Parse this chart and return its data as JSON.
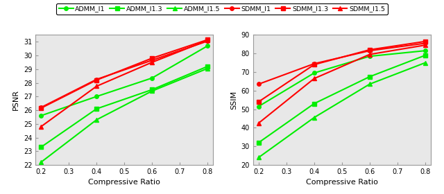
{
  "x": [
    0.2,
    0.4,
    0.6,
    0.8
  ],
  "psnr": {
    "ADMM_l1": [
      25.6,
      27.0,
      28.35,
      30.7
    ],
    "ADMM_l1_3": [
      23.3,
      26.1,
      27.5,
      29.2
    ],
    "ADMM_l1_5": [
      22.2,
      25.3,
      27.4,
      29.05
    ],
    "SDMM_l1": [
      26.2,
      28.25,
      29.65,
      31.05
    ],
    "SDMM_l1_3": [
      26.15,
      28.2,
      29.8,
      31.15
    ],
    "SDMM_l1_5": [
      24.8,
      27.75,
      29.5,
      31.1
    ]
  },
  "ssim": {
    "ADMM_l1": [
      51.5,
      69.5,
      78.5,
      81.5
    ],
    "ADMM_l1_3": [
      32.0,
      53.0,
      67.5,
      79.0
    ],
    "ADMM_l1_5": [
      24.0,
      45.5,
      63.5,
      75.0
    ],
    "SDMM_l1": [
      63.5,
      74.5,
      81.5,
      85.5
    ],
    "SDMM_l1_3": [
      54.0,
      74.0,
      82.0,
      86.5
    ],
    "SDMM_l1_5": [
      42.5,
      66.5,
      79.5,
      84.5
    ]
  },
  "colors": {
    "ADMM": "#00EE00",
    "SDMM": "#FF0000"
  },
  "psnr_ylim": [
    22,
    31.5
  ],
  "ssim_ylim": [
    20,
    90
  ],
  "psnr_yticks": [
    22,
    23,
    24,
    25,
    26,
    27,
    28,
    29,
    30,
    31
  ],
  "ssim_yticks": [
    20,
    30,
    40,
    50,
    60,
    70,
    80,
    90
  ],
  "xticks": [
    0.2,
    0.3,
    0.4,
    0.5,
    0.6,
    0.7,
    0.8
  ],
  "xlabel": "Compressive Ratio",
  "ylabel_left": "PSNR",
  "ylabel_right": "SSIM",
  "linewidth": 1.5,
  "markersize": 4,
  "axes_facecolor": "#e8e8e8",
  "legend_entries": [
    {
      "label": "ADMM_I1",
      "color": "#00EE00",
      "marker": "o"
    },
    {
      "label": "ADMM_I1.3",
      "color": "#00EE00",
      "marker": "s"
    },
    {
      "label": "ADMM_I1.5",
      "color": "#00EE00",
      "marker": "^"
    },
    {
      "label": "SDMM_I1",
      "color": "#FF0000",
      "marker": "o"
    },
    {
      "label": "SDMM_I1.3",
      "color": "#FF0000",
      "marker": "s"
    },
    {
      "label": "SDMM_I1.5",
      "color": "#FF0000",
      "marker": "^"
    }
  ]
}
